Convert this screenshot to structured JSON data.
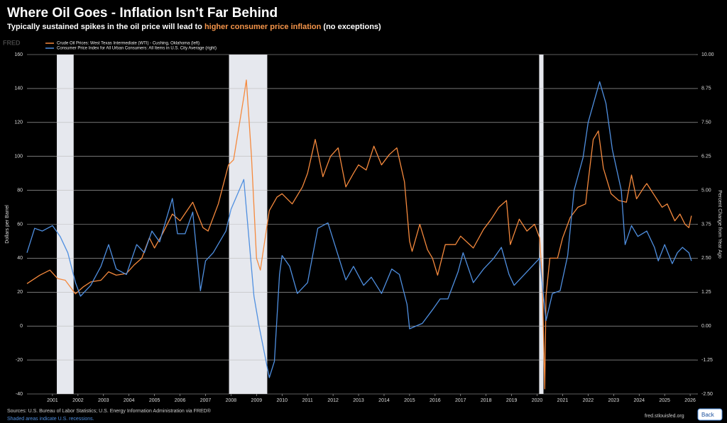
{
  "header": {
    "title": "Where Oil Goes - Inflation Isn’t Far Behind",
    "subtitle": [
      "Typically sustained spikes in the oil price will lead to ",
      "higher consumer price inflation",
      " (no exceptions)"
    ],
    "highlight_color": "#f5954a"
  },
  "brand": "FRED",
  "chart_data": {
    "type": "line",
    "xlim": [
      2000,
      2026.22
    ],
    "ylim": [
      -40,
      160
    ],
    "y2lim": [
      -2.5,
      10
    ],
    "xticks": [
      2001,
      2002,
      2003,
      2004,
      2005,
      2006,
      2007,
      2008,
      2009,
      2010,
      2011,
      2012,
      2013,
      2014,
      2015,
      2016,
      2017,
      2018,
      2019,
      2020,
      2021,
      2022,
      2023,
      2024,
      2025,
      2026
    ],
    "yticks": [
      -40,
      -20,
      0,
      20,
      40,
      60,
      80,
      100,
      120,
      140,
      160
    ],
    "y2ticks": [
      {
        "value": -2.5,
        "label": "-2.50"
      },
      {
        "value": -1.25,
        "label": "-1.25"
      },
      {
        "value": 0,
        "label": "0.00"
      },
      {
        "value": 1.25,
        "label": "1.25"
      },
      {
        "value": 2.5,
        "label": "2.50"
      },
      {
        "value": 3.75,
        "label": "3.75"
      },
      {
        "value": 5,
        "label": "5.00"
      },
      {
        "value": 6.25,
        "label": "6.25"
      },
      {
        "value": 7.5,
        "label": "7.50"
      },
      {
        "value": 8.75,
        "label": "8.75"
      },
      {
        "value": 10,
        "label": "10.00"
      }
    ],
    "grid": true,
    "ylabel": "Dollars per Barrel",
    "y2label": "Percent Change from Year Ago",
    "recessions": [
      [
        2001.17,
        2001.83
      ],
      [
        2007.92,
        2009.42
      ],
      [
        2020.08,
        2020.25
      ]
    ],
    "recession_color": "#e6e8ee",
    "series": [
      {
        "name": "Crude Oil Prices: West Texas Intermediate (WTI) - Cushing, Oklahoma (left)",
        "color": "#f5893d",
        "x": [
          2000.0,
          2000.5,
          2000.9,
          2001.2,
          2001.5,
          2001.9,
          2002.2,
          2002.5,
          2002.9,
          2003.2,
          2003.5,
          2003.9,
          2004.2,
          2004.5,
          2004.8,
          2005.0,
          2005.3,
          2005.7,
          2006.0,
          2006.5,
          2006.9,
          2007.1,
          2007.5,
          2007.9,
          2008.1,
          2008.5,
          2008.6,
          2008.8,
          2009.0,
          2009.15,
          2009.5,
          2009.8,
          2010.0,
          2010.4,
          2010.8,
          2011.0,
          2011.3,
          2011.6,
          2011.9,
          2012.2,
          2012.5,
          2012.8,
          2013.0,
          2013.3,
          2013.6,
          2013.9,
          2014.2,
          2014.5,
          2014.8,
          2015.0,
          2015.1,
          2015.4,
          2015.7,
          2015.9,
          2016.1,
          2016.4,
          2016.8,
          2017.0,
          2017.5,
          2017.9,
          2018.2,
          2018.5,
          2018.8,
          2018.95,
          2019.3,
          2019.6,
          2019.9,
          2020.1,
          2020.2,
          2020.3,
          2020.35,
          2020.5,
          2020.8,
          2021.0,
          2021.3,
          2021.6,
          2021.9,
          2022.0,
          2022.2,
          2022.4,
          2022.6,
          2022.9,
          2023.2,
          2023.5,
          2023.7,
          2023.9,
          2024.2,
          2024.3,
          2024.6,
          2024.9,
          2025.1,
          2025.4,
          2025.6,
          2025.8,
          2025.95,
          2026.05
        ],
        "values": [
          25,
          30,
          33,
          28,
          27,
          19,
          23,
          26,
          27,
          32,
          30,
          31,
          36,
          40,
          52,
          46,
          54,
          66,
          62,
          73,
          58,
          56,
          72,
          95,
          98,
          135,
          145,
          100,
          40,
          33,
          68,
          76,
          78,
          72,
          82,
          90,
          110,
          88,
          100,
          105,
          82,
          90,
          95,
          92,
          106,
          95,
          101,
          105,
          85,
          50,
          44,
          60,
          45,
          40,
          30,
          48,
          48,
          53,
          46,
          57,
          63,
          70,
          74,
          48,
          63,
          56,
          60,
          52,
          28,
          -37,
          18,
          40,
          40,
          52,
          64,
          70,
          72,
          85,
          110,
          115,
          93,
          78,
          74,
          73,
          89,
          75,
          82,
          84,
          77,
          70,
          72,
          62,
          66,
          60,
          58,
          65
        ]
      },
      {
        "name": "Consumer Price Index for All Urban Consumers: All Items in U.S. City Average (right)",
        "color": "#4f8fe0",
        "axis": "y2",
        "x": [
          2000.0,
          2000.3,
          2000.6,
          2001.0,
          2001.3,
          2001.6,
          2001.9,
          2002.1,
          2002.5,
          2002.9,
          2003.2,
          2003.5,
          2003.9,
          2004.3,
          2004.6,
          2004.9,
          2005.2,
          2005.7,
          2005.9,
          2006.2,
          2006.5,
          2006.8,
          2007.0,
          2007.3,
          2007.8,
          2008.0,
          2008.5,
          2008.9,
          2009.1,
          2009.5,
          2009.7,
          2009.9,
          2010.0,
          2010.3,
          2010.6,
          2011.0,
          2011.4,
          2011.8,
          2012.1,
          2012.5,
          2012.8,
          2013.2,
          2013.5,
          2013.9,
          2014.3,
          2014.6,
          2014.9,
          2015.0,
          2015.5,
          2015.9,
          2016.2,
          2016.5,
          2016.9,
          2017.1,
          2017.5,
          2017.9,
          2018.3,
          2018.6,
          2018.9,
          2019.1,
          2019.4,
          2019.9,
          2020.1,
          2020.35,
          2020.6,
          2020.9,
          2021.2,
          2021.45,
          2021.8,
          2022.0,
          2022.45,
          2022.7,
          2022.95,
          2023.3,
          2023.45,
          2023.7,
          2023.95,
          2024.3,
          2024.6,
          2024.75,
          2025.0,
          2025.3,
          2025.5,
          2025.7,
          2025.95,
          2026.05
        ],
        "values": [
          2.7,
          3.6,
          3.5,
          3.7,
          3.3,
          2.7,
          1.6,
          1.1,
          1.5,
          2.2,
          3.0,
          2.1,
          1.9,
          3.0,
          2.7,
          3.5,
          3.1,
          4.7,
          3.4,
          3.4,
          4.2,
          1.3,
          2.4,
          2.7,
          3.5,
          4.3,
          5.4,
          1.1,
          0.0,
          -1.9,
          -1.3,
          1.9,
          2.6,
          2.2,
          1.2,
          1.6,
          3.6,
          3.8,
          2.9,
          1.7,
          2.2,
          1.5,
          1.8,
          1.2,
          2.1,
          1.9,
          0.8,
          -0.1,
          0.1,
          0.6,
          1.0,
          1.0,
          2.0,
          2.7,
          1.6,
          2.1,
          2.5,
          2.9,
          1.9,
          1.5,
          1.8,
          2.3,
          2.5,
          0.2,
          1.2,
          1.3,
          2.6,
          5.0,
          6.2,
          7.5,
          9.0,
          8.2,
          6.5,
          5.0,
          3.0,
          3.7,
          3.3,
          3.5,
          2.9,
          2.4,
          3.0,
          2.3,
          2.7,
          2.9,
          2.7,
          2.4
        ]
      }
    ]
  },
  "footer": {
    "sources": "Sources: U.S. Bureau of Labor Statistics; U.S. Energy Information Administration via FRED®",
    "shaded_note": "Shaded areas indicate U.S. recessions.",
    "site": "fred.stlouisfed.org",
    "back": "Back"
  }
}
